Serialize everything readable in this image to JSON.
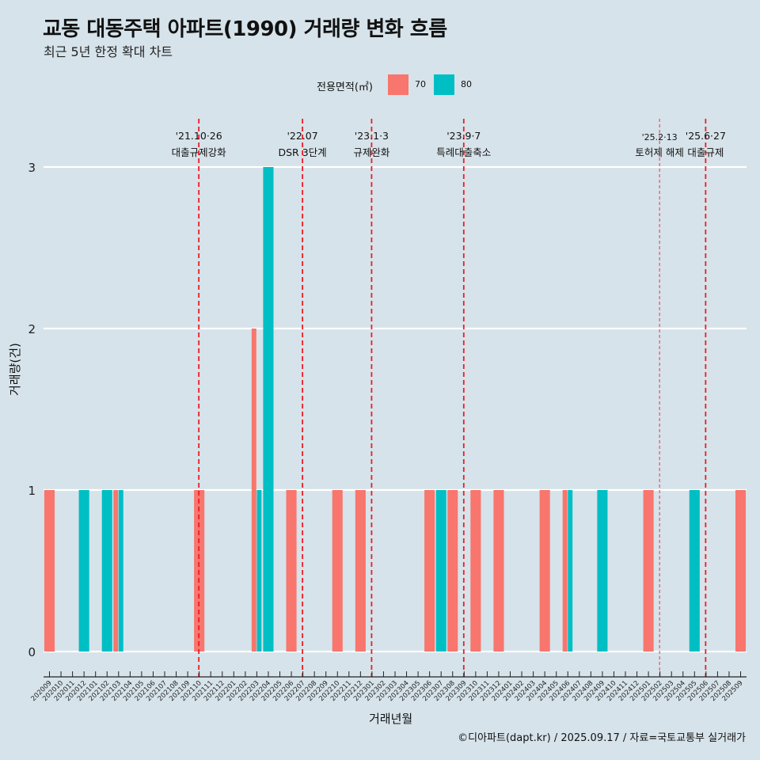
{
  "title": "교동 대동주택 아파트(1990) 거래량 변화 흐름",
  "subtitle": "최근 5년 한정 확대 차트",
  "legend": {
    "title": "전용면적(㎡)",
    "items": [
      {
        "label": "70",
        "color": "#f8766d"
      },
      {
        "label": "80",
        "color": "#00bfc4"
      }
    ]
  },
  "caption": "©디아파트(dapt.kr) / 2025.09.17 / 자료=국토교통부 실거래가",
  "chart_data": {
    "type": "bar",
    "title": "교동 대동주택 아파트(1990) 거래량 변화 흐름",
    "subtitle": "최근 5년 한정 확대 차트",
    "xlabel": "거래년월",
    "ylabel": "거래량(건)",
    "ylim": [
      0,
      3
    ],
    "yticks": [
      "0",
      "1",
      "2",
      "3"
    ],
    "grid": "horizontal",
    "legend_position": "top",
    "categories": [
      "202009",
      "202010",
      "202011",
      "202012",
      "202101",
      "202102",
      "202103",
      "202104",
      "202105",
      "202106",
      "202107",
      "202108",
      "202109",
      "202110",
      "202111",
      "202112",
      "202201",
      "202202",
      "202203",
      "202204",
      "202205",
      "202206",
      "202207",
      "202208",
      "202209",
      "202210",
      "202211",
      "202212",
      "202301",
      "202302",
      "202303",
      "202304",
      "202305",
      "202306",
      "202307",
      "202308",
      "202309",
      "202310",
      "202311",
      "202312",
      "202401",
      "202402",
      "202403",
      "202404",
      "202405",
      "202406",
      "202407",
      "202408",
      "202409",
      "202410",
      "202411",
      "202412",
      "202501",
      "202502",
      "202503",
      "202504",
      "202505",
      "202506",
      "202507",
      "202508",
      "202509"
    ],
    "series": [
      {
        "name": "70",
        "color": "#f8766d",
        "points": [
          {
            "x": "202009",
            "y": 1
          },
          {
            "x": "202103",
            "y": 1
          },
          {
            "x": "202110",
            "y": 1
          },
          {
            "x": "202203",
            "y": 2
          },
          {
            "x": "202206",
            "y": 1
          },
          {
            "x": "202210",
            "y": 1
          },
          {
            "x": "202212",
            "y": 1
          },
          {
            "x": "202306",
            "y": 1
          },
          {
            "x": "202308",
            "y": 1
          },
          {
            "x": "202310",
            "y": 1
          },
          {
            "x": "202312",
            "y": 1
          },
          {
            "x": "202404",
            "y": 1
          },
          {
            "x": "202406",
            "y": 1
          },
          {
            "x": "202501",
            "y": 1
          },
          {
            "x": "202509",
            "y": 1
          }
        ]
      },
      {
        "name": "80",
        "color": "#00bfc4",
        "points": [
          {
            "x": "202012",
            "y": 1
          },
          {
            "x": "202102",
            "y": 1
          },
          {
            "x": "202103",
            "y": 1
          },
          {
            "x": "202203",
            "y": 1
          },
          {
            "x": "202204",
            "y": 3
          },
          {
            "x": "202307",
            "y": 1
          },
          {
            "x": "202406",
            "y": 1
          },
          {
            "x": "202409",
            "y": 1
          },
          {
            "x": "202505",
            "y": 1
          }
        ]
      }
    ],
    "annotations": [
      {
        "x": "202110",
        "date": "'21.10·26",
        "label": "대출규제강화",
        "style": "dashed"
      },
      {
        "x": "202207",
        "date": "'22.07",
        "label": "DSR 3단계",
        "style": "dashed"
      },
      {
        "x": "202301",
        "date": "'23.1·3",
        "label": "규제완화",
        "style": "dashed"
      },
      {
        "x": "202309",
        "date": "'23.9·7",
        "label": "특례대출축소",
        "style": "dashed"
      },
      {
        "x": "202502",
        "date": "'25.2·13",
        "label": "토허제 해제",
        "style": "dashed-thin"
      },
      {
        "x": "202506",
        "date": "'25.6·27",
        "label": "대출규제",
        "style": "dashed"
      }
    ]
  }
}
